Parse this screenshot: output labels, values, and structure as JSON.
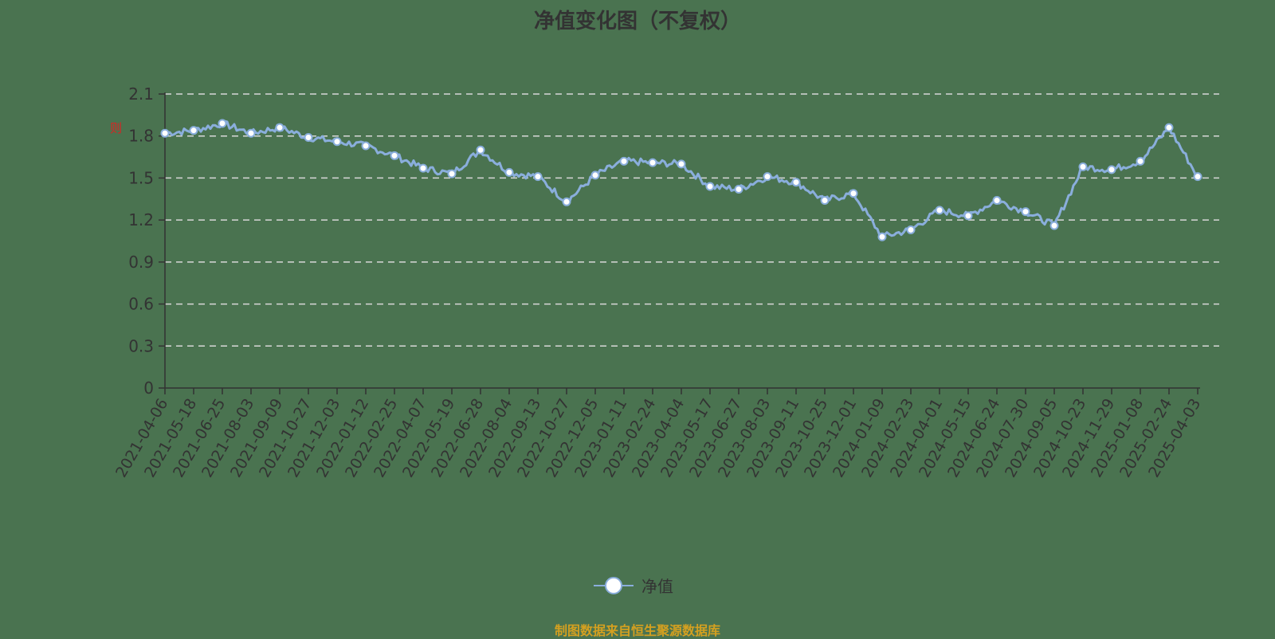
{
  "title": "净值变化图（不复权）",
  "legend": {
    "label": "净值"
  },
  "footer": "制图数据来自恒生聚源数据库",
  "y_marker": "则",
  "colors": {
    "background": "#4a7350",
    "line": "#8aaedc",
    "marker_fill": "#ffffff",
    "grid": "#d8d8d8",
    "axis": "#333333",
    "footer": "#d4a020"
  },
  "chart_data": {
    "type": "line",
    "title": "净值变化图（不复权）",
    "xlabel": "",
    "ylabel": "",
    "ylim": [
      0,
      2.1
    ],
    "yticks": [
      0,
      0.3,
      0.6,
      0.9,
      1.2,
      1.5,
      1.8,
      2.1
    ],
    "grid": "horizontal dashed",
    "legend_position": "bottom",
    "categories": [
      "2021-04-06",
      "2021-05-18",
      "2021-06-25",
      "2021-08-03",
      "2021-09-09",
      "2021-10-27",
      "2021-12-03",
      "2022-01-12",
      "2022-02-25",
      "2022-04-07",
      "2022-05-19",
      "2022-06-28",
      "2022-08-04",
      "2022-09-13",
      "2022-10-27",
      "2022-12-05",
      "2023-01-11",
      "2023-02-24",
      "2023-04-04",
      "2023-05-17",
      "2023-06-27",
      "2023-08-03",
      "2023-09-11",
      "2023-10-25",
      "2023-12-01",
      "2024-01-09",
      "2024-02-23",
      "2024-04-01",
      "2024-05-15",
      "2024-06-24",
      "2024-07-30",
      "2024-09-05",
      "2024-10-23",
      "2024-11-29",
      "2025-01-08",
      "2025-02-24",
      "2025-04-03"
    ],
    "series": [
      {
        "name": "净值",
        "values": [
          1.82,
          1.84,
          1.89,
          1.82,
          1.86,
          1.79,
          1.76,
          1.73,
          1.66,
          1.57,
          1.53,
          1.7,
          1.54,
          1.51,
          1.33,
          1.52,
          1.62,
          1.61,
          1.6,
          1.44,
          1.42,
          1.51,
          1.47,
          1.34,
          1.39,
          1.08,
          1.13,
          1.27,
          1.23,
          1.34,
          1.26,
          1.16,
          1.58,
          1.56,
          1.62,
          1.86,
          1.51
        ]
      }
    ]
  }
}
